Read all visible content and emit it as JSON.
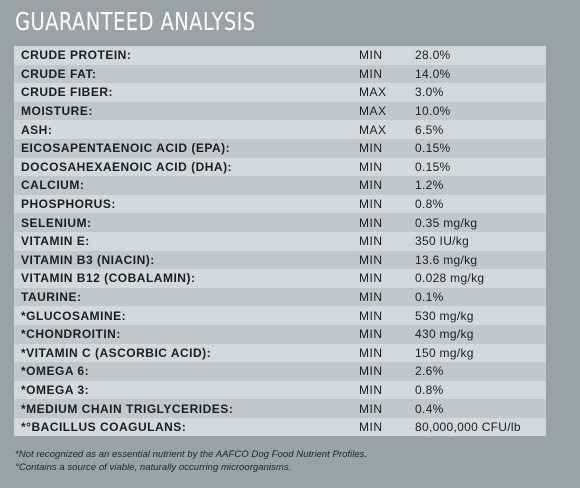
{
  "title": "GUARANTEED ANALYSIS",
  "rows": [
    {
      "nutrient": "CRUDE PROTEIN:",
      "qualifier": "MIN",
      "value": "28.0%"
    },
    {
      "nutrient": "CRUDE FAT:",
      "qualifier": "MIN",
      "value": "14.0%"
    },
    {
      "nutrient": "CRUDE FIBER:",
      "qualifier": "MAX",
      "value": "3.0%"
    },
    {
      "nutrient": "MOISTURE:",
      "qualifier": "MAX",
      "value": "10.0%"
    },
    {
      "nutrient": "ASH:",
      "qualifier": "MAX",
      "value": "6.5%"
    },
    {
      "nutrient": "EICOSAPENTAENOIC ACID (EPA):",
      "qualifier": "MIN",
      "value": "0.15%"
    },
    {
      "nutrient": "DOCOSAHEXAENOIC ACID (DHA):",
      "qualifier": "MIN",
      "value": "0.15%"
    },
    {
      "nutrient": "CALCIUM:",
      "qualifier": "MIN",
      "value": "1.2%"
    },
    {
      "nutrient": "PHOSPHORUS:",
      "qualifier": "MIN",
      "value": "0.8%"
    },
    {
      "nutrient": "SELENIUM:",
      "qualifier": "MIN",
      "value": "0.35 mg/kg"
    },
    {
      "nutrient": "VITAMIN E:",
      "qualifier": "MIN",
      "value": "350 IU/kg"
    },
    {
      "nutrient": "VITAMIN B3 (NIACIN):",
      "qualifier": "MIN",
      "value": "13.6 mg/kg"
    },
    {
      "nutrient": "VITAMIN B12 (COBALAMIN):",
      "qualifier": "MIN",
      "value": "0.028 mg/kg"
    },
    {
      "nutrient": "TAURINE:",
      "qualifier": "MIN",
      "value": "0.1%"
    },
    {
      "nutrient": "*GLUCOSAMINE:",
      "qualifier": "MIN",
      "value": "530 mg/kg"
    },
    {
      "nutrient": "*CHONDROITIN:",
      "qualifier": "MIN",
      "value": "430 mg/kg"
    },
    {
      "nutrient": "*VITAMIN C (ASCORBIC ACID):",
      "qualifier": "MIN",
      "value": "150 mg/kg"
    },
    {
      "nutrient": "*OMEGA 6:",
      "qualifier": "MIN",
      "value": "2.6%"
    },
    {
      "nutrient": "*OMEGA 3:",
      "qualifier": "MIN",
      "value": "0.8%"
    },
    {
      "nutrient": "*MEDIUM CHAIN TRIGLYCERIDES:",
      "qualifier": "MIN",
      "value": "0.4%"
    },
    {
      "nutrient": "*°BACILLUS COAGULANS:",
      "qualifier": "MIN",
      "value": "80,000,000 CFU/lb"
    }
  ],
  "footnotes": [
    "*Not recognized as an essential nutrient by the AAFCO Dog Food Nutrient Profiles.",
    "°Contains a source of viable, naturally occurring microorganisms."
  ],
  "colors": {
    "background": "#9aa2a5",
    "row_light": "#d3d8da",
    "row_dark": "#c2c8ca",
    "title": "#ffffff",
    "text": "#1b1e20"
  }
}
